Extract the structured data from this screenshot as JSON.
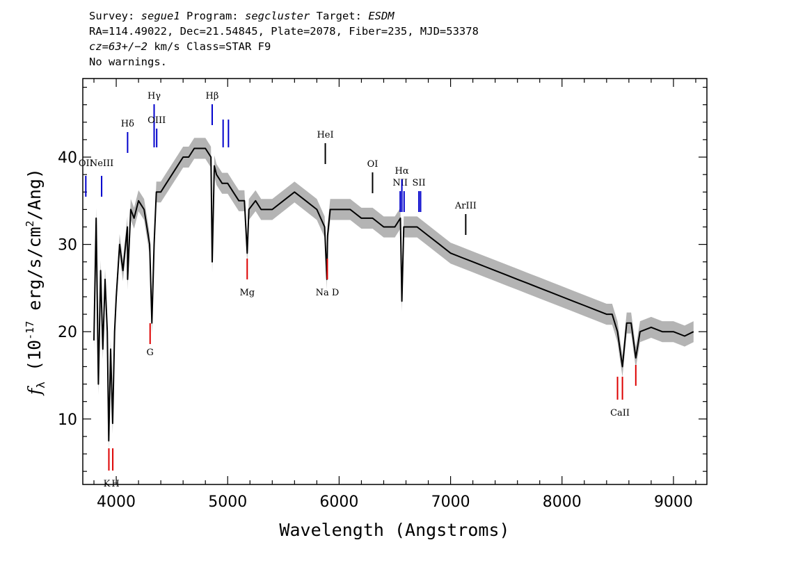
{
  "header": {
    "line1_a": "Survey: ",
    "survey": "segue1",
    "line1_b": " Program: ",
    "program": "segcluster",
    "line1_c": " Target: ",
    "target": "ESDM",
    "line2": "RA=114.49022, Dec=21.54845, Plate=2078, Fiber=235, MJD=53378",
    "line3_a": "cz=63+/−2",
    "line3_b": " km/s Class=STAR F9",
    "line4": "No warnings."
  },
  "colors": {
    "flux": "#000000",
    "error": "#b4b4b4",
    "emission": "#0000cc",
    "absorption": "#dd0000",
    "label": "#000000"
  },
  "chart_data": {
    "type": "line",
    "xlabel": "Wavelength (Angstroms)",
    "ylabel": "f_λ (10^-17 erg/s/cm^2/Ang)",
    "xlim": [
      3700,
      9300
    ],
    "ylim": [
      2.5,
      49
    ],
    "xticks": [
      4000,
      5000,
      6000,
      7000,
      8000,
      9000
    ],
    "yticks": [
      10,
      20,
      30,
      40
    ],
    "series": [
      {
        "x": [
          3800,
          3820,
          3840,
          3860,
          3880,
          3900,
          3920,
          3933,
          3950,
          3968,
          3985,
          4000,
          4030,
          4060,
          4100,
          4102,
          4130,
          4160,
          4200,
          4250,
          4300,
          4320,
          4340,
          4360,
          4400,
          4450,
          4500,
          4550,
          4600,
          4650,
          4700,
          4750,
          4800,
          4850,
          4861,
          4880,
          4900,
          4950,
          5000,
          5050,
          5100,
          5150,
          5175,
          5190,
          5250,
          5300,
          5400,
          5500,
          5600,
          5700,
          5800,
          5870,
          5890,
          5896,
          5920,
          6000,
          6100,
          6200,
          6300,
          6400,
          6500,
          6550,
          6563,
          6580,
          6650,
          6700,
          6800,
          6900,
          7000,
          7100,
          7200,
          7300,
          7400,
          7500,
          7600,
          7700,
          7800,
          7900,
          8000,
          8100,
          8200,
          8300,
          8400,
          8450,
          8498,
          8542,
          8580,
          8620,
          8662,
          8700,
          8800,
          8900,
          9000,
          9100,
          9180
        ],
        "y": [
          19,
          33,
          14,
          27,
          18,
          26,
          20,
          7.5,
          18,
          9.5,
          20,
          24,
          30,
          27,
          32,
          26,
          34,
          33,
          35,
          34,
          30,
          21,
          30,
          36,
          36,
          37,
          38,
          39,
          40,
          40,
          41,
          41,
          41,
          40,
          28,
          39,
          38,
          37,
          37,
          36,
          35,
          35,
          29,
          34,
          35,
          34,
          34,
          35,
          36,
          35,
          34,
          32,
          26,
          31,
          34,
          34,
          34,
          33,
          33,
          32,
          32,
          33,
          23.5,
          32,
          32,
          32,
          31,
          30,
          29,
          28.5,
          28,
          27.5,
          27,
          26.5,
          26,
          25.5,
          25,
          24.5,
          24,
          23.5,
          23,
          22.5,
          22,
          22,
          20,
          16,
          21,
          21,
          17,
          20,
          20.5,
          20,
          20,
          19.5,
          20
        ]
      }
    ],
    "emission_lines": [
      {
        "label": "OII",
        "x": 3727
      },
      {
        "label": "NeIII",
        "x": 3869
      },
      {
        "label": "Hδ",
        "x": 4102
      },
      {
        "label": "Hγ",
        "x": 4340
      },
      {
        "label": "OIII",
        "x": 4363
      },
      {
        "label": "Hβ",
        "x": 4861
      },
      {
        "label": "OIII",
        "x": 4959
      },
      {
        "label": "OIII",
        "x": 5007
      },
      {
        "label": "HeI",
        "x": 5876
      },
      {
        "label": "OI",
        "x": 6300
      },
      {
        "label": "NII",
        "x": 6548
      },
      {
        "label": "Hα",
        "x": 6563
      },
      {
        "label": "NII",
        "x": 6583
      },
      {
        "label": "SII",
        "x": 6716
      },
      {
        "label": "SII",
        "x": 6731
      },
      {
        "label": "ArIII",
        "x": 7136
      }
    ],
    "absorption_lines": [
      {
        "label": "K",
        "x": 3934
      },
      {
        "label": "H",
        "x": 3969
      },
      {
        "label": "G",
        "x": 4304
      },
      {
        "label": "Mg",
        "x": 5175
      },
      {
        "label": "Na D",
        "x": 5894
      },
      {
        "label": "CaII",
        "x": 8498
      },
      {
        "label": "CaII",
        "x": 8542
      },
      {
        "label": "CaII",
        "x": 8662
      }
    ]
  }
}
